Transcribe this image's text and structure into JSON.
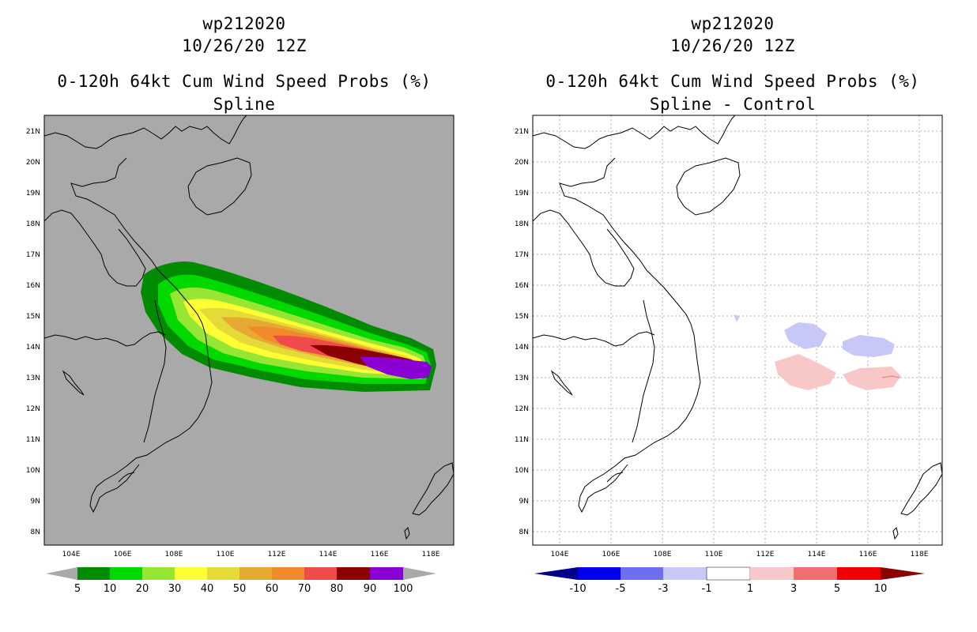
{
  "left_panel": {
    "title_line1": "wp212020",
    "title_line2": "10/26/20 12Z",
    "title_line3": "0-120h 64kt Cum Wind Speed Probs (%)",
    "title_line4": "Spline",
    "background_color": "#a9a9a9",
    "colorbar": {
      "labels": [
        "5",
        "10",
        "20",
        "30",
        "40",
        "50",
        "60",
        "70",
        "80",
        "90",
        "100"
      ],
      "colors": [
        "#a9a9a9",
        "#008b00",
        "#00d900",
        "#98e634",
        "#ffff33",
        "#e5da38",
        "#e6aa33",
        "#f08a2a",
        "#f04b4b",
        "#8b0000",
        "#8a00d4",
        "#a9a9a9"
      ]
    }
  },
  "right_panel": {
    "title_line1": "wp212020",
    "title_line2": "10/26/20 12Z",
    "title_line3": "0-120h 64kt Cum Wind Speed Probs (%)",
    "title_line4": "Spline - Control",
    "background_color": "#ffffff",
    "colorbar": {
      "labels": [
        "-10",
        "-5",
        "-3",
        "-1",
        "1",
        "3",
        "5",
        "10"
      ],
      "colors": [
        "#00008b",
        "#0000f0",
        "#6e6ef0",
        "#c8c8f8",
        "#ffffff",
        "#f8c8c8",
        "#f06e6e",
        "#f00000",
        "#8b0000"
      ]
    }
  },
  "axes": {
    "lon_labels": [
      "104E",
      "106E",
      "108E",
      "110E",
      "112E",
      "114E",
      "116E",
      "118E"
    ],
    "lat_labels": [
      "21N",
      "20N",
      "19N",
      "18N",
      "17N",
      "16N",
      "15N",
      "14N",
      "13N",
      "12N",
      "11N",
      "10N",
      "9N",
      "8N"
    ]
  }
}
